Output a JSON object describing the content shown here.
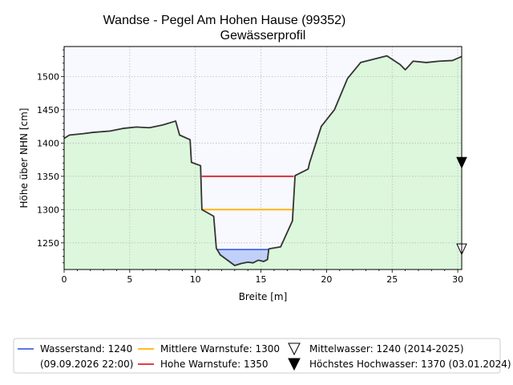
{
  "chart_data": {
    "type": "area",
    "title": "Wandse - Pegel Am Hohen Hause (99352)",
    "subtitle": "Gewässerprofil",
    "xlabel": "Breite [m]",
    "ylabel": "Höhe über NHN [cm]",
    "xlim": [
      0,
      30.3
    ],
    "ylim": [
      1210,
      1545
    ],
    "xticks": [
      0,
      5,
      10,
      15,
      20,
      25,
      30
    ],
    "yticks": [
      1250,
      1300,
      1350,
      1400,
      1450,
      1500
    ],
    "grid": true,
    "profile": {
      "x": [
        0,
        0.4,
        1.4,
        2.2,
        3.5,
        4.5,
        5.5,
        6.5,
        7.5,
        8.5,
        8.8,
        9.6,
        9.7,
        10.4,
        10.5,
        11.4,
        11.6,
        11.9,
        13.0,
        13.5,
        14.0,
        14.4,
        14.8,
        15.2,
        15.5,
        15.6,
        16.5,
        17.4,
        17.6,
        18.6,
        18.7,
        19.6,
        20.6,
        21.6,
        22.6,
        23.6,
        24.6,
        25.6,
        26.0,
        26.6,
        27.6,
        28.6,
        29.6,
        30.3
      ],
      "y": [
        1407,
        1412,
        1414,
        1416,
        1418,
        1422,
        1424,
        1423,
        1427,
        1433,
        1412,
        1405,
        1371,
        1366,
        1300,
        1290,
        1242,
        1232,
        1216,
        1219,
        1221,
        1220,
        1224,
        1222,
        1225,
        1241,
        1244,
        1283,
        1351,
        1361,
        1370,
        1425,
        1450,
        1497,
        1521,
        1526,
        1531,
        1518,
        1510,
        1523,
        1521,
        1523,
        1524,
        1530
      ]
    },
    "series": [
      {
        "name": "Wasserstand: 1240",
        "value": 1240,
        "x_range": [
          11.6,
          15.6
        ],
        "color": "#4466dd"
      },
      {
        "name": "Mittlere Warnstufe: 1300",
        "value": 1300,
        "x_range": [
          10.5,
          17.5
        ],
        "color": "#ffb300"
      },
      {
        "name": "Hohe Warnstufe: 1350",
        "value": 1350,
        "x_range": [
          10.5,
          17.5
        ],
        "color": "#d62728"
      }
    ],
    "markers": [
      {
        "name": "Mittelwasser: 1240 (2014-2025)",
        "value": 1240,
        "symbol": "open-triangle-down"
      },
      {
        "name": "Höchstes Hochwasser: 1370 (03.01.2024)",
        "value": 1370,
        "symbol": "filled-triangle-down"
      }
    ],
    "legend": {
      "position": "bottom",
      "entries": [
        {
          "label": "Wasserstand: 1240",
          "label2": "(09.09.2026 22:00)",
          "kind": "line",
          "color": "#4466dd"
        },
        {
          "label": "Mittlere Warnstufe: 1300",
          "kind": "line",
          "color": "#ffb300"
        },
        {
          "label": "Hohe Warnstufe: 1350",
          "kind": "line",
          "color": "#d62728"
        },
        {
          "label": "Mittelwasser: 1240 (2014-2025)",
          "kind": "open-triangle"
        },
        {
          "label": "Höchstes Hochwasser: 1370 (03.01.2024)",
          "kind": "filled-triangle"
        }
      ]
    },
    "colors": {
      "ground_fill": "#dcf7dc",
      "sky_fill": "#f8f8ff",
      "water_fill": "#c0d0f8",
      "profile_line": "#333333"
    }
  }
}
